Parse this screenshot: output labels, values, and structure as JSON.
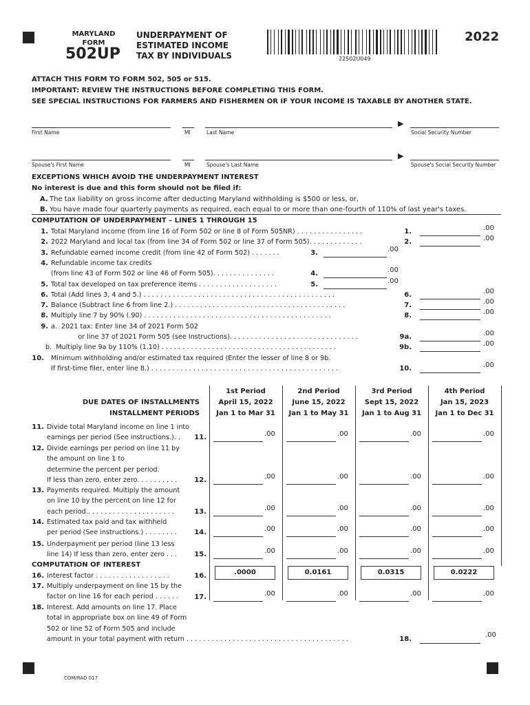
{
  "header": {
    "state": "MARYLAND",
    "form_word": "FORM",
    "form_number": "502UP",
    "title_lines": [
      "UNDERPAYMENT OF",
      "ESTIMATED INCOME",
      "TAX BY INDIVIDUALS"
    ],
    "barcode_number": "22502U049",
    "year": "2022"
  },
  "instructions": [
    "ATTACH THIS FORM TO FORM 502, 505 or 515.",
    "IMPORTANT: REVIEW THE INSTRUCTIONS BEFORE COMPLETING THIS FORM.",
    "SEE SPECIAL INSTRUCTIONS FOR FARMERS AND FISHERMEN OR IF YOUR INCOME IS TAXABLE BY ANOTHER STATE."
  ],
  "name_fields": {
    "first_name": "First Name",
    "mi": "MI",
    "last_name": "Last Name",
    "ssn": "Social Security Number",
    "spouse_first": "Spouse's First Name",
    "spouse_mi": "MI",
    "spouse_last": "Spouse's Last Name",
    "spouse_ssn": "Spouse's Social Security Number"
  },
  "exceptions": {
    "heading": "EXCEPTIONS WHICH AVOID THE UNDERPAYMENT INTEREST",
    "subheading": "No interest is due and this form should not be filed if:",
    "a_label": "A.",
    "a_text": "The tax liability on gross income after deducting Maryland withholding is $500 or less, or,",
    "b_label": "B.",
    "b_text": "You have made four quarterly payments as required, each equal to or more than one-fourth of 110% of last year's taxes."
  },
  "computation": {
    "heading": "COMPUTATION OF UNDERPAYMENT – LINES 1 THROUGH 15",
    "lines": [
      {
        "num": "1.",
        "text": "Total Maryland income (from line 16 of Form 502 or line 8 of Form 505NR) . . . . . . . . . . . . . . . .",
        "ref": "1.",
        "col": "R",
        "cents": ".00"
      },
      {
        "num": "2.",
        "text": "2022 Maryland and local tax (from line 34 of Form 502 or line 37 of Form 505). . . . . . . . . . . . .",
        "ref": "2.",
        "col": "R",
        "cents": ".00"
      },
      {
        "num": "3.",
        "text": "Refundable earned income credit (from line 42 of Form 502) . . . . . . .",
        "ref": "3.",
        "col": "M",
        "cents": ".00"
      },
      {
        "num": "4.",
        "text": "Refundable income tax credits",
        "ref": "",
        "col": "",
        "cents": ""
      },
      {
        "num": "",
        "text": "(from line 43 of Form 502 or line 46 of Form 505). . . . . . . . . . . . . . .",
        "ref": "4.",
        "col": "M",
        "cents": ".00"
      },
      {
        "num": "5.",
        "text": "Total tax developed on tax preference items . . . . . . . . . . . . . . . . . . .",
        "ref": "5.",
        "col": "M",
        "cents": ".00"
      },
      {
        "num": "6.",
        "text": "Total (Add lines 3, 4 and 5.) . . . . . . . . . . . . . . . . . . . . . . . . . . . . . . . . . . . . . . . . . . . . . .",
        "ref": "6.",
        "col": "R",
        "cents": ".00"
      },
      {
        "num": "7.",
        "text": "Balance (Subtract line 6 from line 2.) . . . . . . . . . . . . . . . . . . . . . . . . . . . . . . . . . . . . . . . . .",
        "ref": "7.",
        "col": "R",
        "cents": ".00"
      },
      {
        "num": "8.",
        "text": "Multiply line 7 by 90% (.90) . . . . . . . . . . . . . . . . . . . . . . . . . . . . . . . . . . . . . . . . . . . . .",
        "ref": "8.",
        "col": "R",
        "cents": ".00"
      },
      {
        "num": "9.",
        "text": "a.  2021 tax: Enter line 34 of 2021 Form 502",
        "ref": "",
        "col": "",
        "cents": ""
      },
      {
        "num": "",
        "text": "       or line 37 of 2021 Form 505 (see Instructions). . . . . . . . . . . . . . . . . . . . . . . . . . . . . . .",
        "ref": "9a.",
        "col": "R",
        "cents": ".00"
      },
      {
        "num": "",
        "text": "b.  Multiply line 9a by 110% (1.10) . . . . . . . . . . . . . . . . . . . . . . . . . . . . . . . . . . . . . . . . . .",
        "ref": "9b.",
        "col": "R",
        "cents": ".00"
      },
      {
        "num": "10.",
        "text": "Minimum withholding and/or estimated tax required (Enter the lesser of line 8 or 9b.",
        "ref": "",
        "col": "",
        "cents": ""
      },
      {
        "num": "",
        "text": "If first-time filer, enter line 8.) . . . . . . . . . . . . . . . . . . . . . . . . . . . . . . . . . . . . . . . . . . . . .",
        "ref": "10.",
        "col": "R",
        "cents": ".00"
      }
    ]
  },
  "periods": {
    "label_due": "DUE DATES OF INSTALLMENTS",
    "label_periods": "INSTALLMENT PERIODS",
    "columns": [
      {
        "name": "1st Period",
        "due": "April 15, 2022",
        "range": "Jan 1 to Mar 31"
      },
      {
        "name": "2nd Period",
        "due": "June 15, 2022",
        "range": "Jan 1 to May 31"
      },
      {
        "name": "3rd Period",
        "due": "Sept 15, 2022",
        "range": "Jan 1 to Aug 31"
      },
      {
        "name": "4th Period",
        "due": "Jan 15, 2023",
        "range": "Jan 1 to Dec 31"
      }
    ]
  },
  "period_lines": [
    {
      "num": "11.",
      "text": [
        "Divide total Maryland income on line 1 into",
        "earnings per period (See instructions.). ."
      ],
      "ref": "11.",
      "cents": ".00"
    },
    {
      "num": "12.",
      "text": [
        "Divide earnings per period on line 11 by",
        "the amount on line 1 to",
        "determine the percent per period.",
        "If less than zero, enter zero. . . . . . . . . ."
      ],
      "ref": "12.",
      "cents": ".00"
    },
    {
      "num": "13.",
      "text": [
        "Payments required. Multiply the amount",
        "on line 10 by the percent on line 12 for",
        "each period.. . . . . . . . . . . . . . . . . . . . ."
      ],
      "ref": "13.",
      "cents": ".00"
    },
    {
      "num": "14.",
      "text": [
        "Estimated tax paid and tax withheld",
        "per period (See instructions.) . . . . . . . ."
      ],
      "ref": "14.",
      "cents": ".00"
    },
    {
      "num": "15.",
      "text": [
        "Underpayment per period (line 13 less",
        "line 14) If less than zero, enter zero . . ."
      ],
      "ref": "15.",
      "cents": ".00"
    }
  ],
  "interest": {
    "heading": "COMPUTATION OF INTEREST",
    "line16": {
      "num": "16.",
      "text": "Interest factor . . . . . . . . . . . . . . . . . .",
      "ref": "16.",
      "factors": [
        ".0000",
        "0.0161",
        "0.0315",
        "0.0222"
      ]
    },
    "line17": {
      "num": "17.",
      "text": [
        "Multiply underpayment on line 15 by the",
        "factor on line 16 for each period . . . . . ."
      ],
      "ref": "17.",
      "cents": ".00"
    },
    "line18": {
      "num": "18.",
      "text": [
        "Interest. Add amounts on line 17. Place",
        "total in appropriate box on line 49 of Form",
        "502 or line 52 of Form 505 and include",
        "amount in your total payment with return . . . . . . . . . . . . . . . . . . . . . . . . . . . . . . . . . . . . . . ."
      ],
      "ref": "18.",
      "cents": ".00"
    }
  },
  "footer": {
    "code": "COM/RAD 017"
  }
}
